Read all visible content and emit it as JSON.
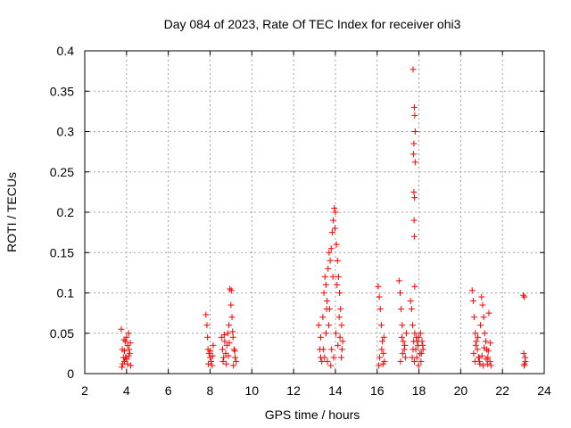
{
  "chart_data": {
    "type": "scatter",
    "title": "Day 084 of 2023, Rate Of TEC Index for receiver ohi3",
    "xlabel": "GPS time / hours",
    "ylabel": "ROTI / TECUs",
    "xlim": [
      2,
      24
    ],
    "ylim": [
      0,
      0.4
    ],
    "xticks": [
      2,
      4,
      6,
      8,
      10,
      12,
      14,
      16,
      18,
      20,
      22,
      24
    ],
    "yticks": [
      0,
      0.05,
      0.1,
      0.15,
      0.2,
      0.25,
      0.3,
      0.35,
      0.4
    ],
    "ytick_labels": [
      "0",
      "0.05",
      "0.1",
      "0.15",
      "0.2",
      "0.25",
      "0.3",
      "0.35",
      "0.4"
    ],
    "grid": true,
    "marker": "+",
    "marker_color": "#ff0000",
    "series": [
      {
        "points": [
          [
            3.75,
            0.055
          ],
          [
            3.8,
            0.03
          ],
          [
            3.85,
            0.02
          ],
          [
            3.9,
            0.015
          ],
          [
            3.95,
            0.04
          ],
          [
            4.0,
            0.045
          ],
          [
            4.05,
            0.035
          ],
          [
            4.1,
            0.05
          ],
          [
            4.15,
            0.025
          ],
          [
            4.2,
            0.01
          ],
          [
            3.82,
            0.012
          ],
          [
            3.9,
            0.028
          ],
          [
            4.0,
            0.018
          ],
          [
            4.1,
            0.022
          ],
          [
            4.18,
            0.038
          ],
          [
            3.78,
            0.008
          ],
          [
            3.88,
            0.042
          ],
          [
            4.05,
            0.012
          ],
          [
            4.12,
            0.03
          ],
          [
            3.95,
            0.02
          ],
          [
            7.8,
            0.073
          ],
          [
            7.85,
            0.06
          ],
          [
            7.9,
            0.03
          ],
          [
            7.95,
            0.025
          ],
          [
            8.0,
            0.02
          ],
          [
            8.05,
            0.015
          ],
          [
            8.1,
            0.01
          ],
          [
            8.15,
            0.035
          ],
          [
            7.88,
            0.045
          ],
          [
            8.02,
            0.028
          ],
          [
            7.92,
            0.012
          ],
          [
            8.12,
            0.022
          ],
          [
            8.55,
            0.045
          ],
          [
            8.6,
            0.03
          ],
          [
            8.65,
            0.02
          ],
          [
            8.7,
            0.04
          ],
          [
            8.75,
            0.025
          ],
          [
            8.8,
            0.035
          ],
          [
            8.85,
            0.05
          ],
          [
            8.9,
            0.06
          ],
          [
            8.95,
            0.105
          ],
          [
            9.0,
            0.085
          ],
          [
            9.05,
            0.07
          ],
          [
            9.1,
            0.045
          ],
          [
            9.15,
            0.03
          ],
          [
            9.2,
            0.02
          ],
          [
            9.25,
            0.015
          ],
          [
            8.62,
            0.015
          ],
          [
            8.78,
            0.012
          ],
          [
            8.92,
            0.038
          ],
          [
            9.02,
            0.103
          ],
          [
            9.08,
            0.052
          ],
          [
            9.18,
            0.028
          ],
          [
            8.68,
            0.048
          ],
          [
            8.88,
            0.022
          ],
          [
            9.12,
            0.01
          ],
          [
            13.2,
            0.06
          ],
          [
            13.25,
            0.03
          ],
          [
            13.3,
            0.02
          ],
          [
            13.35,
            0.015
          ],
          [
            13.4,
            0.07
          ],
          [
            13.45,
            0.1
          ],
          [
            13.5,
            0.12
          ],
          [
            13.55,
            0.11
          ],
          [
            13.6,
            0.09
          ],
          [
            13.65,
            0.13
          ],
          [
            13.7,
            0.15
          ],
          [
            13.75,
            0.14
          ],
          [
            13.8,
            0.155
          ],
          [
            13.85,
            0.175
          ],
          [
            13.9,
            0.19
          ],
          [
            13.95,
            0.205
          ],
          [
            14.0,
            0.2
          ],
          [
            14.05,
            0.16
          ],
          [
            14.1,
            0.14
          ],
          [
            14.15,
            0.12
          ],
          [
            14.2,
            0.1
          ],
          [
            14.25,
            0.08
          ],
          [
            14.3,
            0.06
          ],
          [
            14.35,
            0.04
          ],
          [
            13.3,
            0.045
          ],
          [
            13.42,
            0.03
          ],
          [
            13.55,
            0.05
          ],
          [
            13.68,
            0.06
          ],
          [
            13.72,
            0.08
          ],
          [
            13.82,
            0.03
          ],
          [
            13.92,
            0.02
          ],
          [
            14.02,
            0.05
          ],
          [
            14.12,
            0.035
          ],
          [
            14.22,
            0.045
          ],
          [
            14.32,
            0.03
          ],
          [
            13.62,
            0.015
          ],
          [
            13.78,
            0.01
          ],
          [
            13.88,
            0.12
          ],
          [
            13.98,
            0.18
          ],
          [
            14.08,
            0.11
          ],
          [
            14.18,
            0.07
          ],
          [
            13.48,
            0.02
          ],
          [
            14.28,
            0.02
          ],
          [
            13.58,
            0.08
          ],
          [
            16.05,
            0.108
          ],
          [
            16.1,
            0.095
          ],
          [
            16.15,
            0.08
          ],
          [
            16.2,
            0.06
          ],
          [
            16.25,
            0.04
          ],
          [
            16.3,
            0.025
          ],
          [
            16.35,
            0.015
          ],
          [
            16.12,
            0.02
          ],
          [
            16.22,
            0.03
          ],
          [
            16.32,
            0.045
          ],
          [
            16.08,
            0.01
          ],
          [
            16.28,
            0.012
          ],
          [
            17.05,
            0.115
          ],
          [
            17.1,
            0.1
          ],
          [
            17.15,
            0.08
          ],
          [
            17.2,
            0.06
          ],
          [
            17.25,
            0.04
          ],
          [
            17.3,
            0.03
          ],
          [
            17.35,
            0.02
          ],
          [
            17.4,
            0.05
          ],
          [
            17.12,
            0.015
          ],
          [
            17.22,
            0.025
          ],
          [
            17.32,
            0.035
          ],
          [
            17.18,
            0.045
          ],
          [
            17.6,
            0.09
          ],
          [
            17.65,
            0.08
          ],
          [
            17.7,
            0.06
          ],
          [
            17.75,
            0.04
          ],
          [
            17.8,
            0.05
          ],
          [
            17.85,
            0.03
          ],
          [
            17.9,
            0.02
          ],
          [
            17.95,
            0.035
          ],
          [
            18.0,
            0.045
          ],
          [
            18.05,
            0.025
          ],
          [
            18.1,
            0.015
          ],
          [
            18.15,
            0.04
          ],
          [
            18.2,
            0.03
          ],
          [
            17.68,
            0.02
          ],
          [
            17.78,
            0.015
          ],
          [
            17.88,
            0.045
          ],
          [
            17.98,
            0.01
          ],
          [
            18.08,
            0.05
          ],
          [
            17.72,
            0.03
          ],
          [
            17.92,
            0.04
          ],
          [
            18.12,
            0.025
          ],
          [
            18.18,
            0.035
          ],
          [
            17.72,
            0.377
          ],
          [
            17.78,
            0.33
          ],
          [
            17.8,
            0.32
          ],
          [
            17.82,
            0.3
          ],
          [
            17.76,
            0.285
          ],
          [
            17.74,
            0.272
          ],
          [
            17.82,
            0.262
          ],
          [
            17.76,
            0.225
          ],
          [
            17.79,
            0.218
          ],
          [
            17.77,
            0.19
          ],
          [
            17.78,
            0.17
          ],
          [
            17.8,
            0.108
          ],
          [
            20.55,
            0.103
          ],
          [
            20.6,
            0.09
          ],
          [
            20.65,
            0.07
          ],
          [
            20.7,
            0.05
          ],
          [
            20.75,
            0.04
          ],
          [
            20.8,
            0.03
          ],
          [
            20.85,
            0.02
          ],
          [
            20.9,
            0.015
          ],
          [
            20.95,
            0.06
          ],
          [
            21.0,
            0.095
          ],
          [
            21.05,
            0.085
          ],
          [
            21.1,
            0.07
          ],
          [
            21.15,
            0.05
          ],
          [
            21.2,
            0.04
          ],
          [
            21.25,
            0.03
          ],
          [
            21.3,
            0.02
          ],
          [
            21.35,
            0.075
          ],
          [
            21.4,
            0.015
          ],
          [
            21.45,
            0.01
          ],
          [
            20.62,
            0.025
          ],
          [
            20.72,
            0.035
          ],
          [
            20.82,
            0.045
          ],
          [
            20.92,
            0.012
          ],
          [
            21.02,
            0.022
          ],
          [
            21.12,
            0.032
          ],
          [
            21.22,
            0.018
          ],
          [
            21.32,
            0.028
          ],
          [
            21.42,
            0.038
          ],
          [
            20.68,
            0.015
          ],
          [
            20.88,
            0.02
          ],
          [
            21.08,
            0.01
          ],
          [
            21.28,
            0.012
          ],
          [
            23.0,
            0.097
          ],
          [
            23.05,
            0.095
          ],
          [
            23.02,
            0.025
          ],
          [
            23.08,
            0.02
          ],
          [
            23.1,
            0.015
          ],
          [
            23.04,
            0.01
          ],
          [
            23.06,
            0.012
          ]
        ]
      }
    ]
  }
}
